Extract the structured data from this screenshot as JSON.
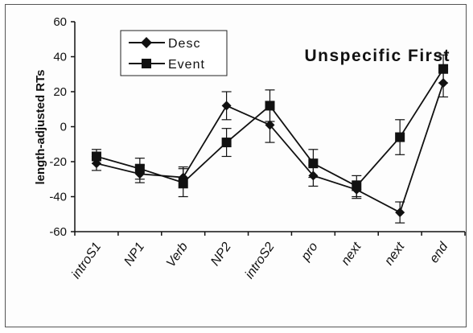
{
  "chart_data": {
    "type": "line",
    "title": "Unspecific First",
    "ylabel": "length-adjusted RTs",
    "xlabel": "",
    "ylim": [
      -60,
      60
    ],
    "yticks": [
      -60,
      -40,
      -20,
      0,
      20,
      40,
      60
    ],
    "grid": false,
    "legend_position": "top-left",
    "categories": [
      "introS1",
      "NP1",
      "Verb",
      "NP2",
      "introS2",
      "pro",
      "next",
      "next",
      "end"
    ],
    "series": [
      {
        "name": "Desc",
        "marker": "diamond",
        "color": "#111111",
        "values": [
          -21,
          -27,
          -29,
          12,
          1,
          -28,
          -36,
          -49,
          25
        ],
        "error": [
          4,
          5,
          6,
          8,
          10,
          6,
          5,
          6,
          8
        ]
      },
      {
        "name": "Event",
        "marker": "square",
        "color": "#111111",
        "values": [
          -17,
          -24,
          -32,
          -9,
          12,
          -21,
          -34,
          -6,
          33
        ],
        "error": [
          4,
          6,
          8,
          8,
          9,
          8,
          6,
          10,
          8
        ]
      }
    ]
  }
}
